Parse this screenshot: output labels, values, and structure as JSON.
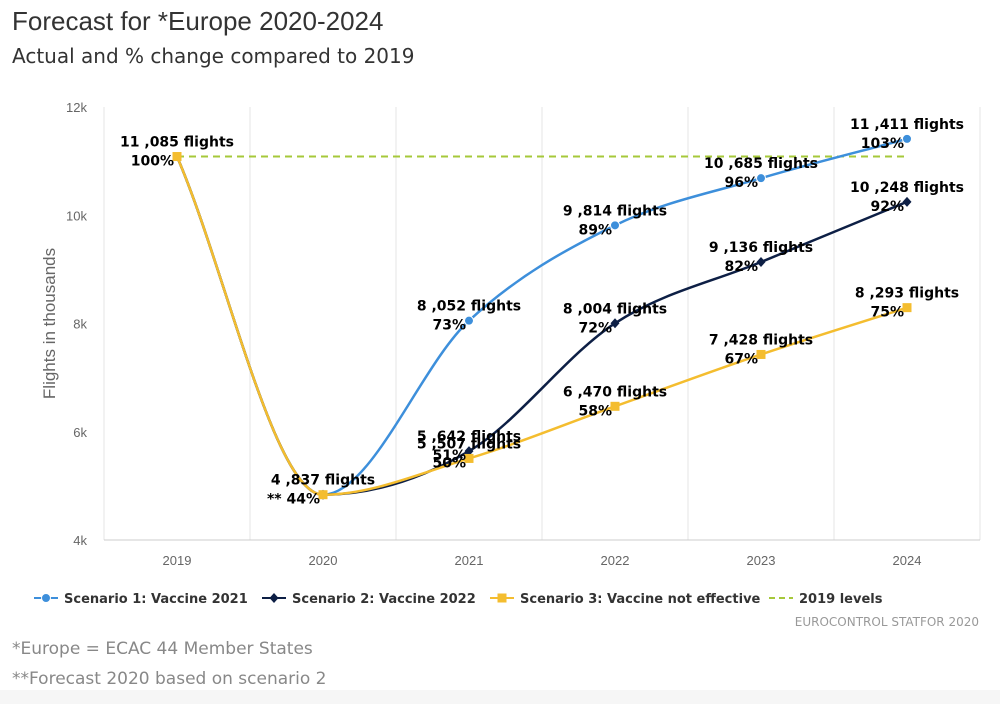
{
  "title": "Forecast for *Europe 2020-2024",
  "subtitle": "Actual and % change compared to 2019",
  "notes": [
    "*Europe = ECAC 44 Member States",
    "**Forecast 2020 based on scenario 2"
  ],
  "credit": "EUROCONTROL STATFOR 2020",
  "chart_data": {
    "type": "line",
    "title": "Forecast for *Europe 2020-2024",
    "subtitle": "Actual and % change compared to 2019",
    "xlabel": "",
    "ylabel": "Flights in thousands",
    "categories": [
      "2019",
      "2020",
      "2021",
      "2022",
      "2023",
      "2024"
    ],
    "ylim": [
      4000,
      12000
    ],
    "yticks": [
      {
        "value": 4000,
        "label": "4k"
      },
      {
        "value": 6000,
        "label": "6k"
      },
      {
        "value": 8000,
        "label": "8k"
      },
      {
        "value": 10000,
        "label": "10k"
      },
      {
        "value": 12000,
        "label": "12k"
      }
    ],
    "grid": "vertical",
    "legend_position": "bottom",
    "series": [
      {
        "name": "Scenario 1: Vaccine 2021",
        "color": "#3d8fdb",
        "marker": "circle",
        "values": [
          11085,
          4837,
          8052,
          9814,
          10685,
          11411
        ],
        "labels": [
          null,
          null,
          {
            "flights": "8 ,052 flights",
            "pct": "73%"
          },
          {
            "flights": "9 ,814 flights",
            "pct": "89%"
          },
          {
            "flights": "10 ,685 flights",
            "pct": "96%"
          },
          {
            "flights": "11 ,411 flights",
            "pct": "103%"
          }
        ]
      },
      {
        "name": "Scenario 2: Vaccine 2022",
        "color": "#0d1f45",
        "marker": "diamond",
        "values": [
          11085,
          4837,
          5642,
          8004,
          9136,
          10248
        ],
        "labels": [
          null,
          {
            "flights": "4 ,837 flights",
            "pct": "** 44%"
          },
          {
            "flights": "5 ,642 flights",
            "pct": "51%"
          },
          {
            "flights": "8 ,004 flights",
            "pct": "72%"
          },
          {
            "flights": "9 ,136 flights",
            "pct": "82%"
          },
          {
            "flights": "10 ,248 flights",
            "pct": "92%"
          }
        ]
      },
      {
        "name": "Scenario 3: Vaccine not effective",
        "color": "#f4bd2f",
        "marker": "square",
        "values": [
          11085,
          4837,
          5507,
          6470,
          7428,
          8293
        ],
        "labels": [
          {
            "flights": "11 ,085 flights",
            "pct": "100%"
          },
          null,
          {
            "flights": "5 ,507 flights",
            "pct": "50%"
          },
          {
            "flights": "6 ,470 flights",
            "pct": "58%"
          },
          {
            "flights": "7 ,428 flights",
            "pct": "67%"
          },
          {
            "flights": "8 ,293 flights",
            "pct": "75%"
          }
        ]
      },
      {
        "name": "2019 levels",
        "color": "#a6c83a",
        "marker": "none",
        "dash": true,
        "values": [
          11085,
          11085,
          11085,
          11085,
          11085,
          11085
        ]
      }
    ]
  }
}
